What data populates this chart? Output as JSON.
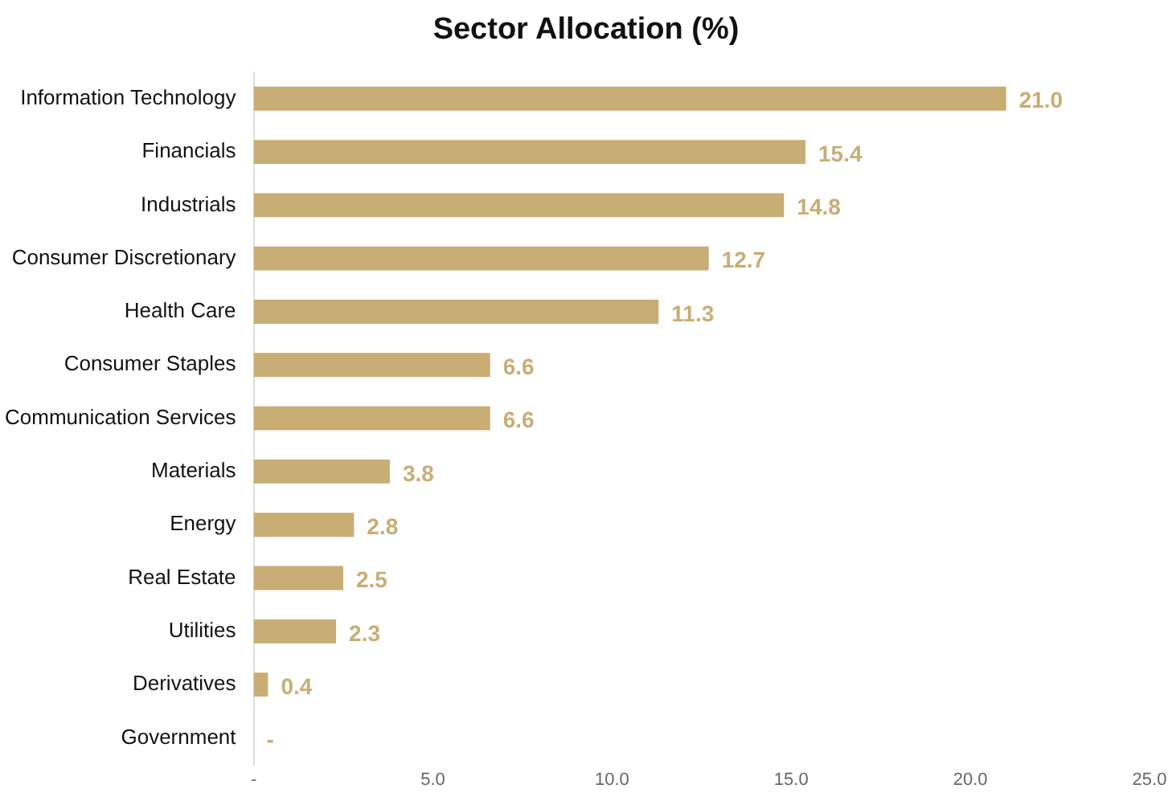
{
  "chart_data": {
    "type": "bar",
    "orientation": "horizontal",
    "title": "Sector Allocation (%)",
    "categories": [
      "Information Technology",
      "Financials",
      "Industrials",
      "Consumer Discretionary",
      "Health Care",
      "Consumer Staples",
      "Communication Services",
      "Materials",
      "Energy",
      "Real Estate",
      "Utilities",
      "Derivatives",
      "Government"
    ],
    "values": [
      21.0,
      15.4,
      14.8,
      12.7,
      11.3,
      6.6,
      6.6,
      3.8,
      2.8,
      2.5,
      2.3,
      0.4,
      0
    ],
    "value_labels": [
      "21.0",
      "15.4",
      "14.8",
      "12.7",
      "11.3",
      "6.6",
      "6.6",
      "3.8",
      "2.8",
      "2.5",
      "2.3",
      "0.4",
      "-"
    ],
    "color": "#c8ad74",
    "xlim": [
      0,
      25
    ],
    "xticks": [
      {
        "value": 0,
        "label": "-"
      },
      {
        "value": 5,
        "label": "5.0"
      },
      {
        "value": 10,
        "label": "10.0"
      },
      {
        "value": 15,
        "label": "15.0"
      },
      {
        "value": 20,
        "label": "20.0"
      },
      {
        "value": 25,
        "label": "25.0"
      }
    ],
    "grid": false,
    "legend": false
  }
}
